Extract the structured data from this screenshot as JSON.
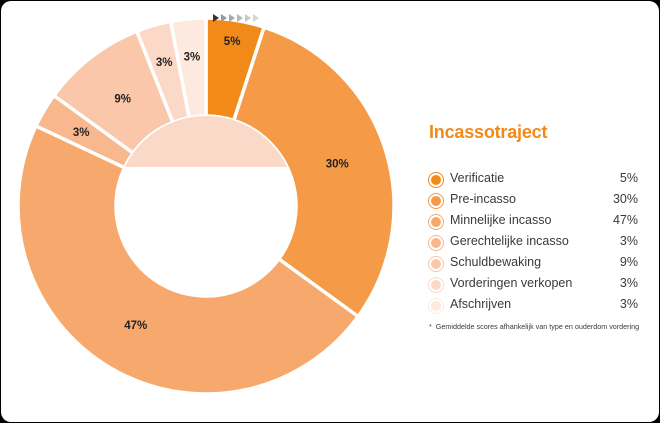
{
  "colors": {
    "frame_bg": "#000000",
    "card_bg": "#ffffff",
    "title": "#f28a1a",
    "text": "#3a3a3a",
    "arrow_dark": "#333333",
    "arrow_light": "#999999"
  },
  "legend": {
    "title": "Incassotraject",
    "footnote": "Gemiddelde scores afhankelijk van type en ouderdom vordering"
  },
  "chart_data": {
    "type": "pie",
    "title": "Incassotraject",
    "donut": true,
    "slices": [
      {
        "label": "Verificatie",
        "value": 5,
        "value_label": "5%",
        "color": "#f28a1a"
      },
      {
        "label": "Pre-incasso",
        "value": 30,
        "value_label": "30%",
        "color": "#f59a46"
      },
      {
        "label": "Minnelijke incasso",
        "value": 47,
        "value_label": "47%",
        "color": "#f7a86c"
      },
      {
        "label": "Gerechtelijke incasso",
        "value": 3,
        "value_label": "3%",
        "color": "#f8b78d"
      },
      {
        "label": "Schuldbewaking",
        "value": 9,
        "value_label": "9%",
        "color": "#fac7aa"
      },
      {
        "label": "Vorderingen verkopen",
        "value": 3,
        "value_label": "3%",
        "color": "#fcd9c6"
      },
      {
        "label": "Afschrijven",
        "value": 3,
        "value_label": "3%",
        "color": "#fde9de"
      }
    ],
    "center_fill": "#fbd9c8",
    "legend_position": "right"
  }
}
